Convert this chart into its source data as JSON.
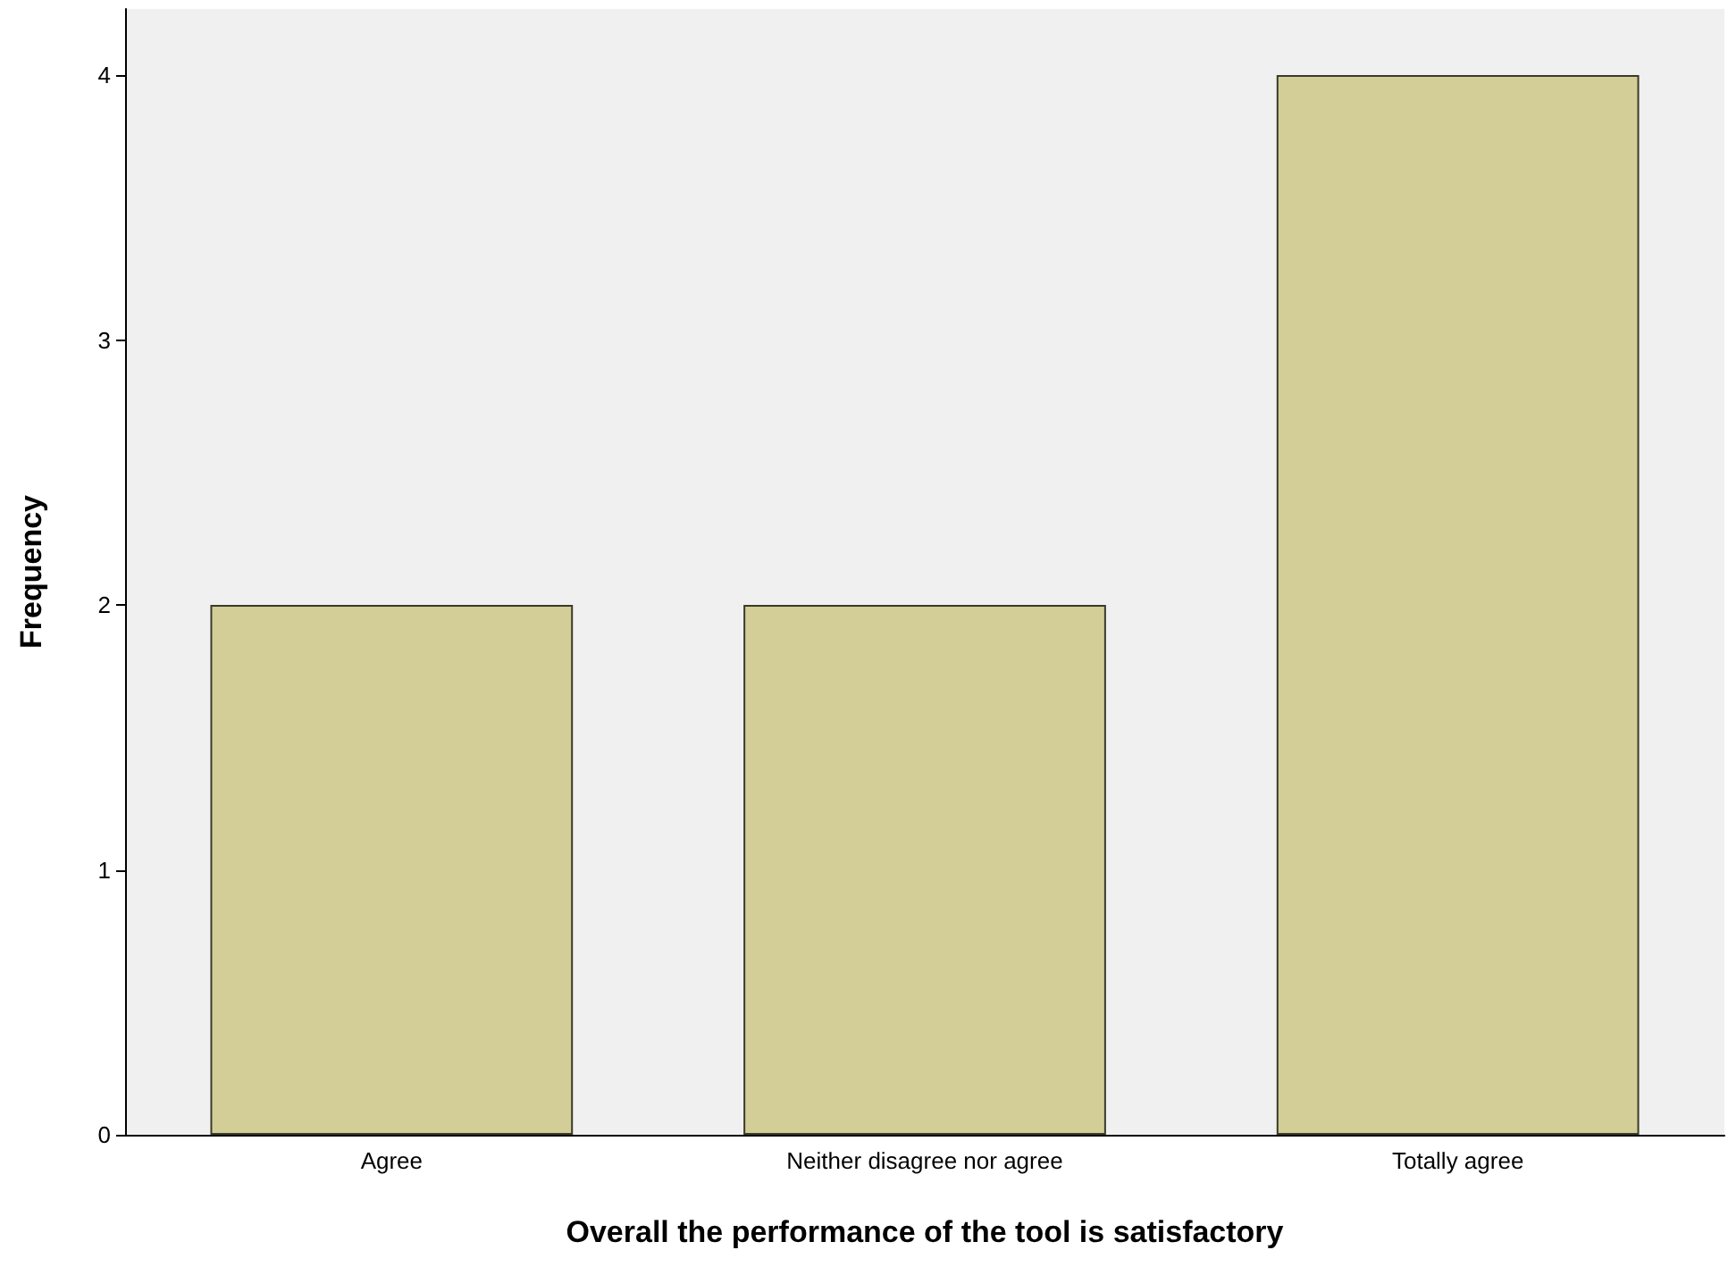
{
  "chart_data": {
    "type": "bar",
    "xlabel": "Overall the performance of the tool is satisfactory",
    "ylabel": "Frequency",
    "categories": [
      "Agree",
      "Neither disagree nor agree",
      "Totally agree"
    ],
    "values": [
      2,
      2,
      4
    ],
    "color": "#d3ce97",
    "ylim": [
      0,
      4.25
    ],
    "yticks": [
      0,
      1,
      2,
      3,
      4
    ],
    "grid": false
  }
}
